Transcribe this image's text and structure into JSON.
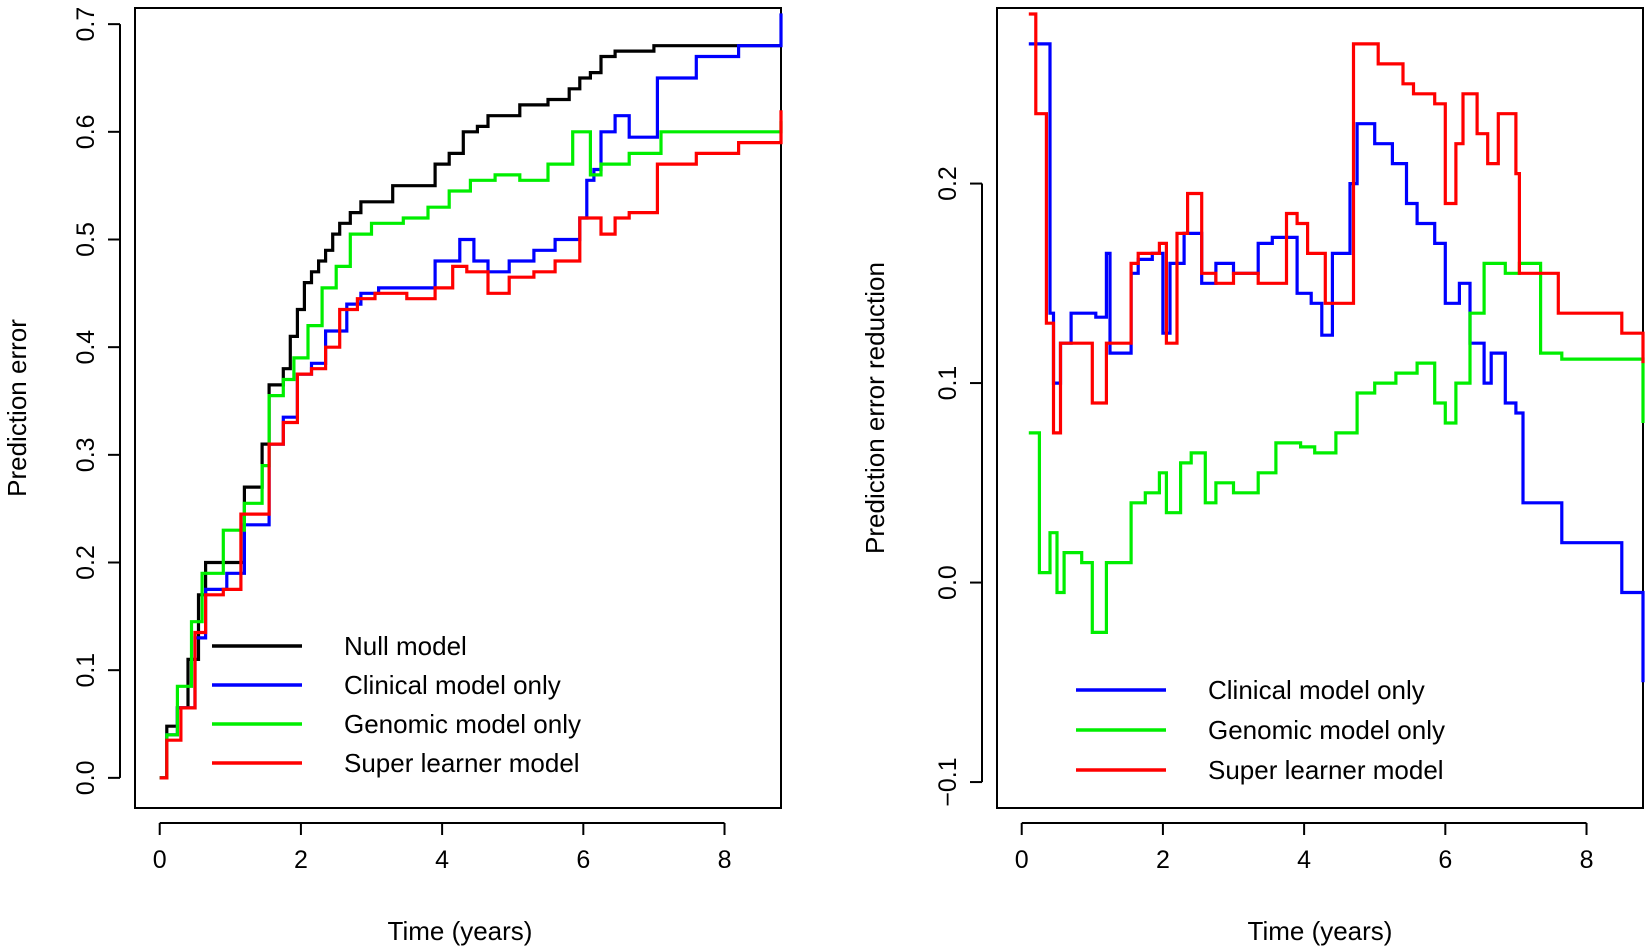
{
  "colors": {
    "null": "#000000",
    "clinical": "#0000ff",
    "genomic": "#00ee00",
    "super": "#ff0000"
  },
  "chart_data": [
    {
      "type": "line",
      "step": true,
      "xlabel": "Time (years)",
      "ylabel": "Prediction error",
      "xlim": [
        -0.35,
        8.8
      ],
      "ylim": [
        -0.028,
        0.715
      ],
      "xticks": [
        0,
        2,
        4,
        6,
        8
      ],
      "yticks": [
        0.0,
        0.1,
        0.2,
        0.3,
        0.4,
        0.5,
        0.6,
        0.7
      ],
      "ytick_labels": [
        "0.0",
        "0.1",
        "0.2",
        "0.3",
        "0.4",
        "0.5",
        "0.6",
        "0.7"
      ],
      "legend": [
        "Null model",
        "Clinical model only",
        "Genomic model only",
        "Super learner model"
      ],
      "legend_position": "bottom",
      "series": [
        {
          "name": "Null model",
          "color_key": "null",
          "x": [
            0,
            0.1,
            0.25,
            0.4,
            0.55,
            0.65,
            0.9,
            1.2,
            1.45,
            1.55,
            1.75,
            1.85,
            1.95,
            2.05,
            2.15,
            2.25,
            2.35,
            2.45,
            2.55,
            2.7,
            2.85,
            3.3,
            3.9,
            4.1,
            4.3,
            4.5,
            4.65,
            5.1,
            5.5,
            5.8,
            5.95,
            6.1,
            6.25,
            6.45,
            7.0,
            8.8
          ],
          "y": [
            0.0,
            0.048,
            0.065,
            0.11,
            0.17,
            0.2,
            0.2,
            0.27,
            0.31,
            0.365,
            0.38,
            0.41,
            0.435,
            0.46,
            0.47,
            0.48,
            0.49,
            0.505,
            0.515,
            0.525,
            0.535,
            0.55,
            0.57,
            0.58,
            0.6,
            0.605,
            0.615,
            0.625,
            0.63,
            0.64,
            0.65,
            0.655,
            0.67,
            0.675,
            0.68,
            0.68
          ]
        },
        {
          "name": "Clinical model only",
          "color_key": "clinical",
          "x": [
            0,
            0.1,
            0.25,
            0.5,
            0.65,
            0.95,
            1.2,
            1.55,
            1.75,
            1.95,
            2.15,
            2.35,
            2.65,
            2.85,
            3.1,
            3.5,
            3.9,
            4.25,
            4.45,
            4.65,
            4.95,
            5.3,
            5.6,
            5.95,
            6.05,
            6.15,
            6.25,
            6.45,
            6.65,
            7.05,
            7.6,
            8.2,
            8.8
          ],
          "y": [
            0.0,
            0.04,
            0.065,
            0.13,
            0.175,
            0.19,
            0.235,
            0.31,
            0.335,
            0.375,
            0.385,
            0.415,
            0.44,
            0.45,
            0.455,
            0.455,
            0.48,
            0.5,
            0.48,
            0.47,
            0.48,
            0.49,
            0.5,
            0.52,
            0.555,
            0.565,
            0.6,
            0.615,
            0.595,
            0.65,
            0.67,
            0.68,
            0.71
          ]
        },
        {
          "name": "Genomic model only",
          "color_key": "genomic",
          "x": [
            0,
            0.1,
            0.25,
            0.45,
            0.6,
            0.9,
            1.2,
            1.45,
            1.55,
            1.75,
            1.9,
            2.1,
            2.3,
            2.5,
            2.7,
            3.0,
            3.45,
            3.8,
            4.1,
            4.4,
            4.75,
            5.1,
            5.5,
            5.85,
            6.1,
            6.25,
            6.65,
            7.1,
            8.8
          ],
          "y": [
            0.0,
            0.04,
            0.085,
            0.145,
            0.19,
            0.23,
            0.255,
            0.29,
            0.355,
            0.37,
            0.39,
            0.42,
            0.455,
            0.475,
            0.505,
            0.515,
            0.52,
            0.53,
            0.545,
            0.555,
            0.56,
            0.555,
            0.57,
            0.6,
            0.56,
            0.57,
            0.58,
            0.6,
            0.61
          ]
        },
        {
          "name": "Super learner model",
          "color_key": "super",
          "x": [
            0,
            0.1,
            0.3,
            0.5,
            0.65,
            0.9,
            1.15,
            1.55,
            1.75,
            1.95,
            2.15,
            2.35,
            2.55,
            2.8,
            3.05,
            3.5,
            3.9,
            4.15,
            4.35,
            4.65,
            4.95,
            5.3,
            5.6,
            5.95,
            6.25,
            6.45,
            6.65,
            7.05,
            7.6,
            8.2,
            8.8
          ],
          "y": [
            0.0,
            0.035,
            0.065,
            0.135,
            0.17,
            0.175,
            0.245,
            0.31,
            0.33,
            0.375,
            0.38,
            0.4,
            0.435,
            0.445,
            0.45,
            0.445,
            0.455,
            0.475,
            0.47,
            0.45,
            0.465,
            0.47,
            0.48,
            0.52,
            0.505,
            0.52,
            0.525,
            0.57,
            0.58,
            0.59,
            0.62
          ]
        }
      ]
    },
    {
      "type": "line",
      "step": true,
      "xlabel": "Time (years)",
      "ylabel": "Prediction error reduction",
      "xlim": [
        -0.35,
        8.8
      ],
      "ylim": [
        -0.113,
        0.288
      ],
      "xticks": [
        0,
        2,
        4,
        6,
        8
      ],
      "yticks": [
        -0.1,
        0.0,
        0.1,
        0.2
      ],
      "ytick_labels": [
        "−0.1",
        "0.0",
        "0.1",
        "0.2"
      ],
      "legend": [
        "Clinical model only",
        "Genomic model only",
        "Super learner model"
      ],
      "legend_position": "bottom",
      "series": [
        {
          "name": "Clinical model only",
          "color_key": "clinical",
          "x": [
            0.1,
            0.4,
            0.45,
            0.55,
            0.7,
            1.05,
            1.2,
            1.25,
            1.55,
            1.65,
            1.85,
            2.0,
            2.1,
            2.3,
            2.55,
            2.75,
            3.0,
            3.35,
            3.55,
            3.9,
            4.1,
            4.25,
            4.4,
            4.65,
            4.75,
            5.0,
            5.25,
            5.45,
            5.6,
            5.85,
            6.0,
            6.2,
            6.35,
            6.55,
            6.65,
            6.85,
            7.0,
            7.1,
            7.65,
            8.5,
            8.8
          ],
          "y": [
            0.27,
            0.135,
            0.1,
            0.12,
            0.135,
            0.133,
            0.165,
            0.115,
            0.155,
            0.162,
            0.165,
            0.125,
            0.16,
            0.175,
            0.15,
            0.16,
            0.155,
            0.17,
            0.173,
            0.145,
            0.14,
            0.124,
            0.165,
            0.2,
            0.23,
            0.22,
            0.21,
            0.19,
            0.18,
            0.17,
            0.14,
            0.15,
            0.12,
            0.1,
            0.115,
            0.09,
            0.085,
            0.04,
            0.02,
            -0.005,
            -0.05
          ]
        },
        {
          "name": "Genomic model only",
          "color_key": "genomic",
          "x": [
            0.1,
            0.25,
            0.4,
            0.5,
            0.6,
            0.85,
            1.0,
            1.2,
            1.55,
            1.75,
            1.95,
            2.05,
            2.25,
            2.4,
            2.6,
            2.75,
            3.0,
            3.35,
            3.6,
            3.95,
            4.15,
            4.45,
            4.75,
            5.0,
            5.3,
            5.6,
            5.85,
            6.0,
            6.15,
            6.35,
            6.55,
            6.7,
            6.85,
            7.05,
            7.35,
            7.65,
            8.8
          ],
          "y": [
            0.075,
            0.005,
            0.025,
            -0.005,
            0.015,
            0.01,
            -0.025,
            0.01,
            0.04,
            0.045,
            0.055,
            0.035,
            0.06,
            0.065,
            0.04,
            0.05,
            0.045,
            0.055,
            0.07,
            0.068,
            0.065,
            0.075,
            0.095,
            0.1,
            0.105,
            0.11,
            0.09,
            0.08,
            0.1,
            0.135,
            0.16,
            0.16,
            0.155,
            0.16,
            0.115,
            0.112,
            0.08
          ]
        },
        {
          "name": "Super learner model",
          "color_key": "super",
          "x": [
            0.1,
            0.2,
            0.35,
            0.45,
            0.55,
            0.8,
            1.0,
            1.2,
            1.55,
            1.65,
            1.95,
            2.05,
            2.2,
            2.35,
            2.55,
            2.75,
            3.0,
            3.35,
            3.75,
            3.9,
            4.05,
            4.3,
            4.7,
            5.05,
            5.2,
            5.4,
            5.55,
            5.85,
            6.0,
            6.15,
            6.25,
            6.45,
            6.6,
            6.75,
            7.0,
            7.05,
            7.6,
            8.5,
            8.8
          ],
          "y": [
            0.285,
            0.235,
            0.13,
            0.075,
            0.12,
            0.12,
            0.09,
            0.12,
            0.16,
            0.165,
            0.17,
            0.12,
            0.175,
            0.195,
            0.155,
            0.15,
            0.155,
            0.15,
            0.185,
            0.18,
            0.165,
            0.14,
            0.27,
            0.26,
            0.26,
            0.25,
            0.245,
            0.24,
            0.19,
            0.22,
            0.245,
            0.225,
            0.21,
            0.235,
            0.205,
            0.155,
            0.135,
            0.125,
            0.11
          ]
        }
      ]
    }
  ]
}
